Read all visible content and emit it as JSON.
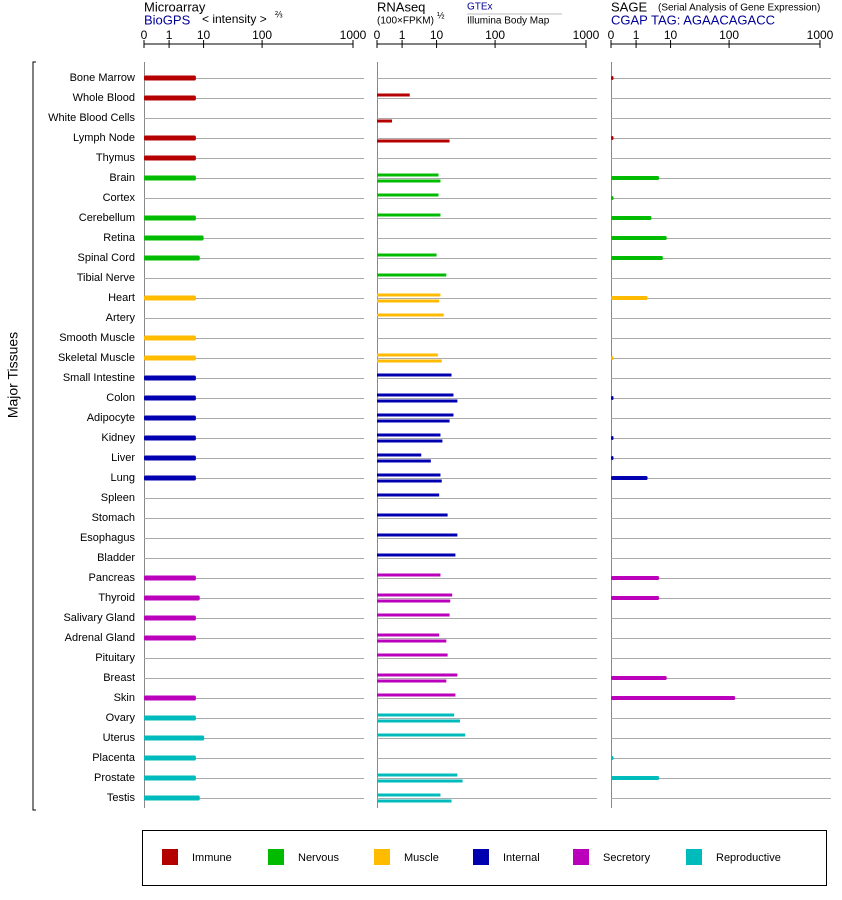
{
  "chart_data": {
    "type": "bar",
    "y_label": "Major Tissues",
    "groups": [
      {
        "name": "Immune",
        "color": "#b50000",
        "tissues": [
          "Bone Marrow",
          "Whole Blood",
          "White Blood Cells",
          "Lymph Node",
          "Thymus"
        ]
      },
      {
        "name": "Nervous",
        "color": "#00bb00",
        "tissues": [
          "Brain",
          "Cortex",
          "Cerebellum",
          "Retina",
          "Spinal Cord",
          "Tibial Nerve"
        ]
      },
      {
        "name": "Muscle",
        "color": "#ffbb00",
        "tissues": [
          "Heart",
          "Artery",
          "Smooth Muscle",
          "Skeletal Muscle"
        ]
      },
      {
        "name": "Internal",
        "color": "#0000b0",
        "tissues": [
          "Small Intestine",
          "Colon",
          "Adipocyte",
          "Kidney",
          "Liver",
          "Lung",
          "Spleen",
          "Stomach",
          "Esophagus",
          "Bladder"
        ]
      },
      {
        "name": "Secretory",
        "color": "#bb00bb",
        "tissues": [
          "Pancreas",
          "Thyroid",
          "Salivary Gland",
          "Adrenal Gland",
          "Pituitary",
          "Breast",
          "Skin"
        ]
      },
      {
        "name": "Reproductive",
        "color": "#00bbbb",
        "tissues": [
          "Ovary",
          "Uterus",
          "Placenta",
          "Prostate",
          "Testis"
        ]
      }
    ],
    "panels": [
      {
        "title": "Microarray",
        "unit": "< intensity >",
        "unit_exponent": "⅔",
        "xlim": [
          0,
          1000
        ],
        "xticks": [
          0,
          1,
          10,
          100,
          1000
        ],
        "series": [
          {
            "name": "BioGPS",
            "values": [
              8,
              8,
              null,
              8,
              8,
              8,
              null,
              8,
              10,
              9,
              null,
              8,
              null,
              8,
              8,
              8,
              8,
              8,
              8,
              8,
              8,
              null,
              null,
              null,
              null,
              8,
              9,
              8,
              8,
              null,
              null,
              8,
              8,
              11,
              8,
              8,
              9
            ]
          }
        ]
      },
      {
        "title": "RNAseq",
        "unit": "(100×FPKM)",
        "unit_exponent": "½",
        "xlim": [
          0,
          1000
        ],
        "xticks": [
          0,
          1,
          10,
          100,
          1000
        ],
        "series": [
          {
            "name": "GTEx",
            "values": [
              null,
              3,
              null,
              null,
              null,
              13,
              13,
              16,
              null,
              10,
              25,
              16,
              21,
              null,
              12,
              33,
              36,
              36,
              16,
              6,
              16,
              14,
              27,
              42,
              39,
              16,
              34,
              30,
              14,
              27,
              42,
              39,
              37,
              54,
              null,
              42,
              16
            ]
          },
          {
            "name": "Illumina Body Map",
            "values": [
              null,
              null,
              0.6,
              30,
              null,
              16,
              null,
              null,
              null,
              null,
              null,
              14,
              null,
              null,
              18,
              null,
              42,
              30,
              19,
              8.5,
              18,
              null,
              null,
              null,
              null,
              null,
              31,
              null,
              25,
              null,
              25,
              null,
              46,
              null,
              null,
              50,
              33
            ]
          }
        ]
      },
      {
        "title": "SAGE",
        "subtitle": "(Serial Analysis of Gene Expression)",
        "xlim": [
          0,
          1000
        ],
        "xticks": [
          0,
          1,
          10,
          100,
          1000
        ],
        "series": [
          {
            "name": "CGAP TAG: AGAACAGACC",
            "values": [
              0.1,
              null,
              null,
              0.1,
              null,
              7,
              0.1,
              5,
              9,
              8,
              null,
              4,
              null,
              null,
              0.1,
              null,
              0.1,
              null,
              0.1,
              0.1,
              4,
              null,
              null,
              null,
              null,
              7,
              7,
              null,
              null,
              null,
              9,
              160,
              null,
              null,
              0.1,
              7,
              null
            ]
          }
        ]
      }
    ]
  }
}
